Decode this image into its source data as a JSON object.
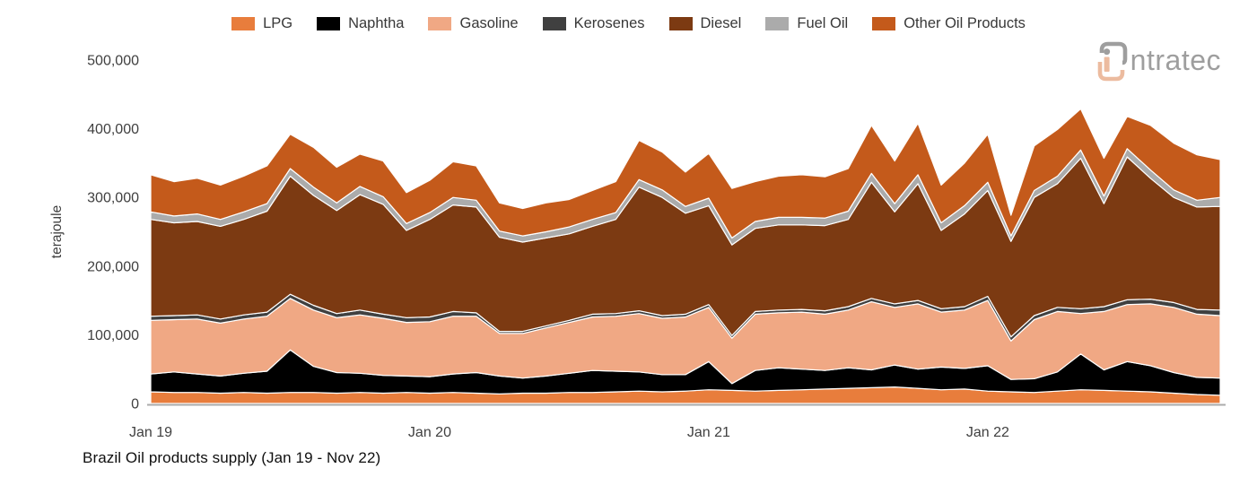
{
  "logo": {
    "text": "ntratec",
    "gray": "#9e9e9e",
    "peach": "#ecbb9f"
  },
  "axis": {
    "line_color": "#ababab",
    "tick_color": "#404040"
  },
  "chart_data": {
    "type": "area",
    "stacked": true,
    "title": "Brazil Oil products supply (Jan 19 - Nov 22)",
    "xlabel": "",
    "ylabel": "terajoule",
    "ylim": [
      0,
      500000
    ],
    "yticks": [
      0,
      100000,
      200000,
      300000,
      400000,
      500000
    ],
    "ytick_labels": [
      "0",
      "100,000",
      "200,000",
      "300,000",
      "400,000",
      "500,000"
    ],
    "grid": false,
    "legend_position": "top",
    "background": "#ffffff",
    "x": [
      "Jan 19",
      "Feb 19",
      "Mar 19",
      "Apr 19",
      "May 19",
      "Jun 19",
      "Jul 19",
      "Aug 19",
      "Sep 19",
      "Oct 19",
      "Nov 19",
      "Dec 19",
      "Jan 20",
      "Feb 20",
      "Mar 20",
      "Apr 20",
      "May 20",
      "Jun 20",
      "Jul 20",
      "Aug 20",
      "Sep 20",
      "Oct 20",
      "Nov 20",
      "Dec 20",
      "Jan 21",
      "Feb 21",
      "Mar 21",
      "Apr 21",
      "May 21",
      "Jun 21",
      "Jul 21",
      "Aug 21",
      "Sep 21",
      "Oct 21",
      "Nov 21",
      "Dec 21",
      "Jan 22",
      "Feb 22",
      "Mar 22",
      "Apr 22",
      "May 22",
      "Jun 22",
      "Jul 22",
      "Aug 22",
      "Sep 22",
      "Oct 22",
      "Nov 22"
    ],
    "xtick_indices": [
      0,
      12,
      24,
      36
    ],
    "xtick_labels": [
      "Jan 19",
      "Jan 20",
      "Jan 21",
      "Jan 22"
    ],
    "series": [
      {
        "name": "LPG",
        "color": "#e87d3c",
        "values": [
          17000,
          16000,
          16000,
          15000,
          16000,
          15000,
          16000,
          16000,
          15000,
          16000,
          15000,
          16000,
          15000,
          16000,
          15000,
          14000,
          15000,
          15000,
          16000,
          16000,
          17000,
          18000,
          17000,
          18000,
          20000,
          19000,
          18000,
          19000,
          20000,
          21000,
          22000,
          23000,
          24000,
          22000,
          20000,
          21000,
          18000,
          17000,
          16000,
          18000,
          20000,
          19000,
          18000,
          17000,
          15000,
          13000,
          12000
        ]
      },
      {
        "name": "Naphtha",
        "color": "#000000",
        "values": [
          26000,
          30000,
          27000,
          25000,
          28000,
          32000,
          62000,
          38000,
          30000,
          28000,
          26000,
          24000,
          24000,
          27000,
          30000,
          26000,
          22000,
          25000,
          28000,
          32000,
          30000,
          28000,
          25000,
          24000,
          41000,
          10000,
          30000,
          33000,
          30000,
          27000,
          30000,
          26000,
          32000,
          28000,
          33000,
          30000,
          37000,
          18000,
          20000,
          28000,
          52000,
          30000,
          43000,
          38000,
          30000,
          25000,
          25000
        ]
      },
      {
        "name": "Gasoline",
        "color": "#f0a884",
        "values": [
          78000,
          76000,
          80000,
          77000,
          79000,
          80000,
          75000,
          82000,
          80000,
          85000,
          83000,
          78000,
          80000,
          84000,
          82000,
          62000,
          65000,
          70000,
          74000,
          78000,
          80000,
          85000,
          82000,
          84000,
          79000,
          66000,
          82000,
          80000,
          83000,
          82000,
          84000,
          99000,
          84000,
          95000,
          80000,
          85000,
          95000,
          56000,
          86000,
          88000,
          59000,
          85000,
          83000,
          90000,
          95000,
          92000,
          91000
        ]
      },
      {
        "name": "Kerosenes",
        "color": "#404040",
        "values": [
          6000,
          6000,
          6000,
          6000,
          6000,
          6000,
          6000,
          7000,
          6000,
          7000,
          6000,
          7000,
          7000,
          7000,
          5000,
          3000,
          3000,
          3000,
          3000,
          4000,
          4000,
          4000,
          4000,
          4000,
          4000,
          4000,
          4000,
          4000,
          4000,
          5000,
          5000,
          5000,
          5000,
          5000,
          5000,
          5000,
          6000,
          6000,
          6000,
          6000,
          7000,
          7000,
          7000,
          7000,
          7000,
          7000,
          8000
        ]
      },
      {
        "name": "Diesel",
        "color": "#7c3a12",
        "values": [
          141000,
          135000,
          136000,
          135000,
          139000,
          147000,
          172000,
          160000,
          150000,
          168000,
          160000,
          127000,
          142000,
          155000,
          154000,
          137000,
          130000,
          128000,
          126000,
          128000,
          137000,
          180000,
          172000,
          147000,
          144000,
          132000,
          121000,
          124000,
          123000,
          124000,
          127000,
          169000,
          134000,
          170000,
          114000,
          135000,
          154000,
          139000,
          172000,
          180000,
          219000,
          150000,
          208000,
          176000,
          153000,
          149000,
          151000
        ]
      },
      {
        "name": "Fuel Oil",
        "color": "#ababab",
        "values": [
          11000,
          10000,
          11000,
          10000,
          11000,
          11000,
          11000,
          12000,
          11000,
          12000,
          11000,
          10000,
          10000,
          11000,
          10000,
          9000,
          9000,
          9000,
          10000,
          10000,
          10000,
          11000,
          11000,
          10000,
          11000,
          10000,
          10000,
          11000,
          11000,
          11000,
          12000,
          13000,
          12000,
          13000,
          11000,
          12000,
          12000,
          8000,
          10000,
          11000,
          12000,
          11000,
          12000,
          12000,
          11000,
          10000,
          13000
        ]
      },
      {
        "name": "Other Oil Products",
        "color": "#c45a1b",
        "values": [
          54000,
          50000,
          52000,
          50000,
          52000,
          55000,
          50000,
          58000,
          52000,
          47000,
          52000,
          45000,
          47000,
          52000,
          50000,
          41000,
          40000,
          42000,
          40000,
          42000,
          45000,
          57000,
          55000,
          50000,
          65000,
          72000,
          58000,
          60000,
          62000,
          60000,
          62000,
          70000,
          62000,
          75000,
          55000,
          62000,
          70000,
          30000,
          65000,
          68000,
          60000,
          55000,
          47000,
          65000,
          68000,
          66000,
          55000
        ]
      }
    ]
  }
}
